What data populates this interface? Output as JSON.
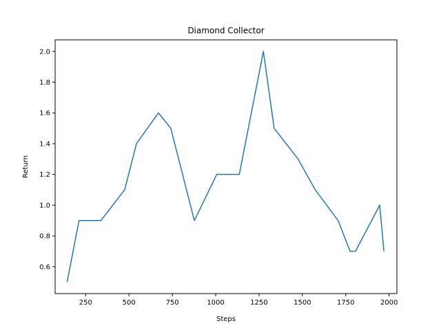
{
  "chart_data": {
    "type": "line",
    "title": "Diamond Collector",
    "xlabel": "Steps",
    "ylabel": "Return",
    "xlim": [
      74,
      2045
    ],
    "ylim": [
      0.425,
      2.075
    ],
    "xticks": [
      250,
      500,
      750,
      1000,
      1250,
      1500,
      1750,
      2000
    ],
    "xtick_labels": [
      "250",
      "500",
      "750",
      "1000",
      "1250",
      "1500",
      "1750",
      "2000"
    ],
    "yticks": [
      0.6,
      0.8,
      1.0,
      1.2,
      1.4,
      1.6,
      1.8,
      2.0
    ],
    "ytick_labels": [
      "0.6",
      "0.8",
      "1.0",
      "1.2",
      "1.4",
      "1.6",
      "1.8",
      "2.0"
    ],
    "grid": false,
    "series": [
      {
        "color": "#1f77b4",
        "x": [
          143,
          212,
          338,
          475,
          543,
          670,
          741,
          877,
          1006,
          1136,
          1275,
          1337,
          1475,
          1574,
          1706,
          1775,
          1806,
          1946,
          1970
        ],
        "y": [
          0.5,
          0.9,
          0.9,
          1.1,
          1.4,
          1.6,
          1.5,
          0.9,
          1.2,
          1.2,
          2.0,
          1.5,
          1.3,
          1.1,
          0.9,
          0.7,
          0.7,
          1.0,
          0.7
        ]
      }
    ]
  }
}
